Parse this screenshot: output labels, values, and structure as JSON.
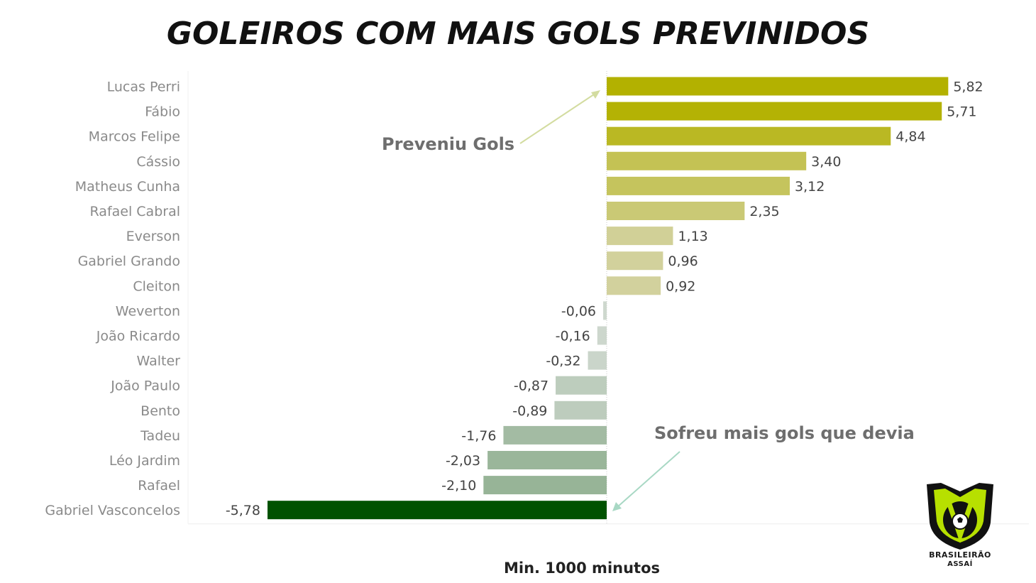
{
  "chart_data": {
    "type": "bar",
    "orientation": "horizontal",
    "title": "GOLEIROS COM MAIS GOLS PREVINIDOS",
    "footer": "Min. 1000 minutos",
    "categories": [
      "Lucas Perri",
      "Fábio",
      "Marcos Felipe",
      "Cássio",
      "Matheus Cunha",
      "Rafael Cabral",
      "Everson",
      "Gabriel Grando",
      "Cleiton",
      "Weverton",
      "João Ricardo",
      "Walter",
      "João Paulo",
      "Bento",
      "Tadeu",
      "Léo Jardim",
      "Rafael",
      "Gabriel Vasconcelos"
    ],
    "values": [
      5.82,
      5.71,
      4.84,
      3.4,
      3.12,
      2.35,
      1.13,
      0.96,
      0.92,
      -0.06,
      -0.16,
      -0.32,
      -0.87,
      -0.89,
      -1.76,
      -2.03,
      -2.1,
      -5.78
    ],
    "value_labels": [
      "5,82",
      "5,71",
      "4,84",
      "3,40",
      "3,12",
      "2,35",
      "1,13",
      "0,96",
      "0,92",
      "-0,06",
      "-0,16",
      "-0,32",
      "-0,87",
      "-0,89",
      "-1,76",
      "-2,03",
      "-2,10",
      "-5,78"
    ],
    "xlim": [
      -5.78,
      5.82
    ],
    "grid": false,
    "legend": "none",
    "annotations": [
      {
        "text": "Preveniu Gols"
      },
      {
        "text": "Sofreu mais gols que devia"
      }
    ],
    "colors": {
      "positive_max": "#b3b100",
      "positive_min": "#d6d5b0",
      "negative_min": "#cfd8cf",
      "negative_max": "#005200",
      "arrow_positive": "#d3dca0",
      "arrow_negative": "#a8d8c4"
    }
  },
  "logo": {
    "name": "BRASILEIRÃO",
    "sub": "ASSAÍ",
    "icon": "brasileirao-shield-icon"
  }
}
